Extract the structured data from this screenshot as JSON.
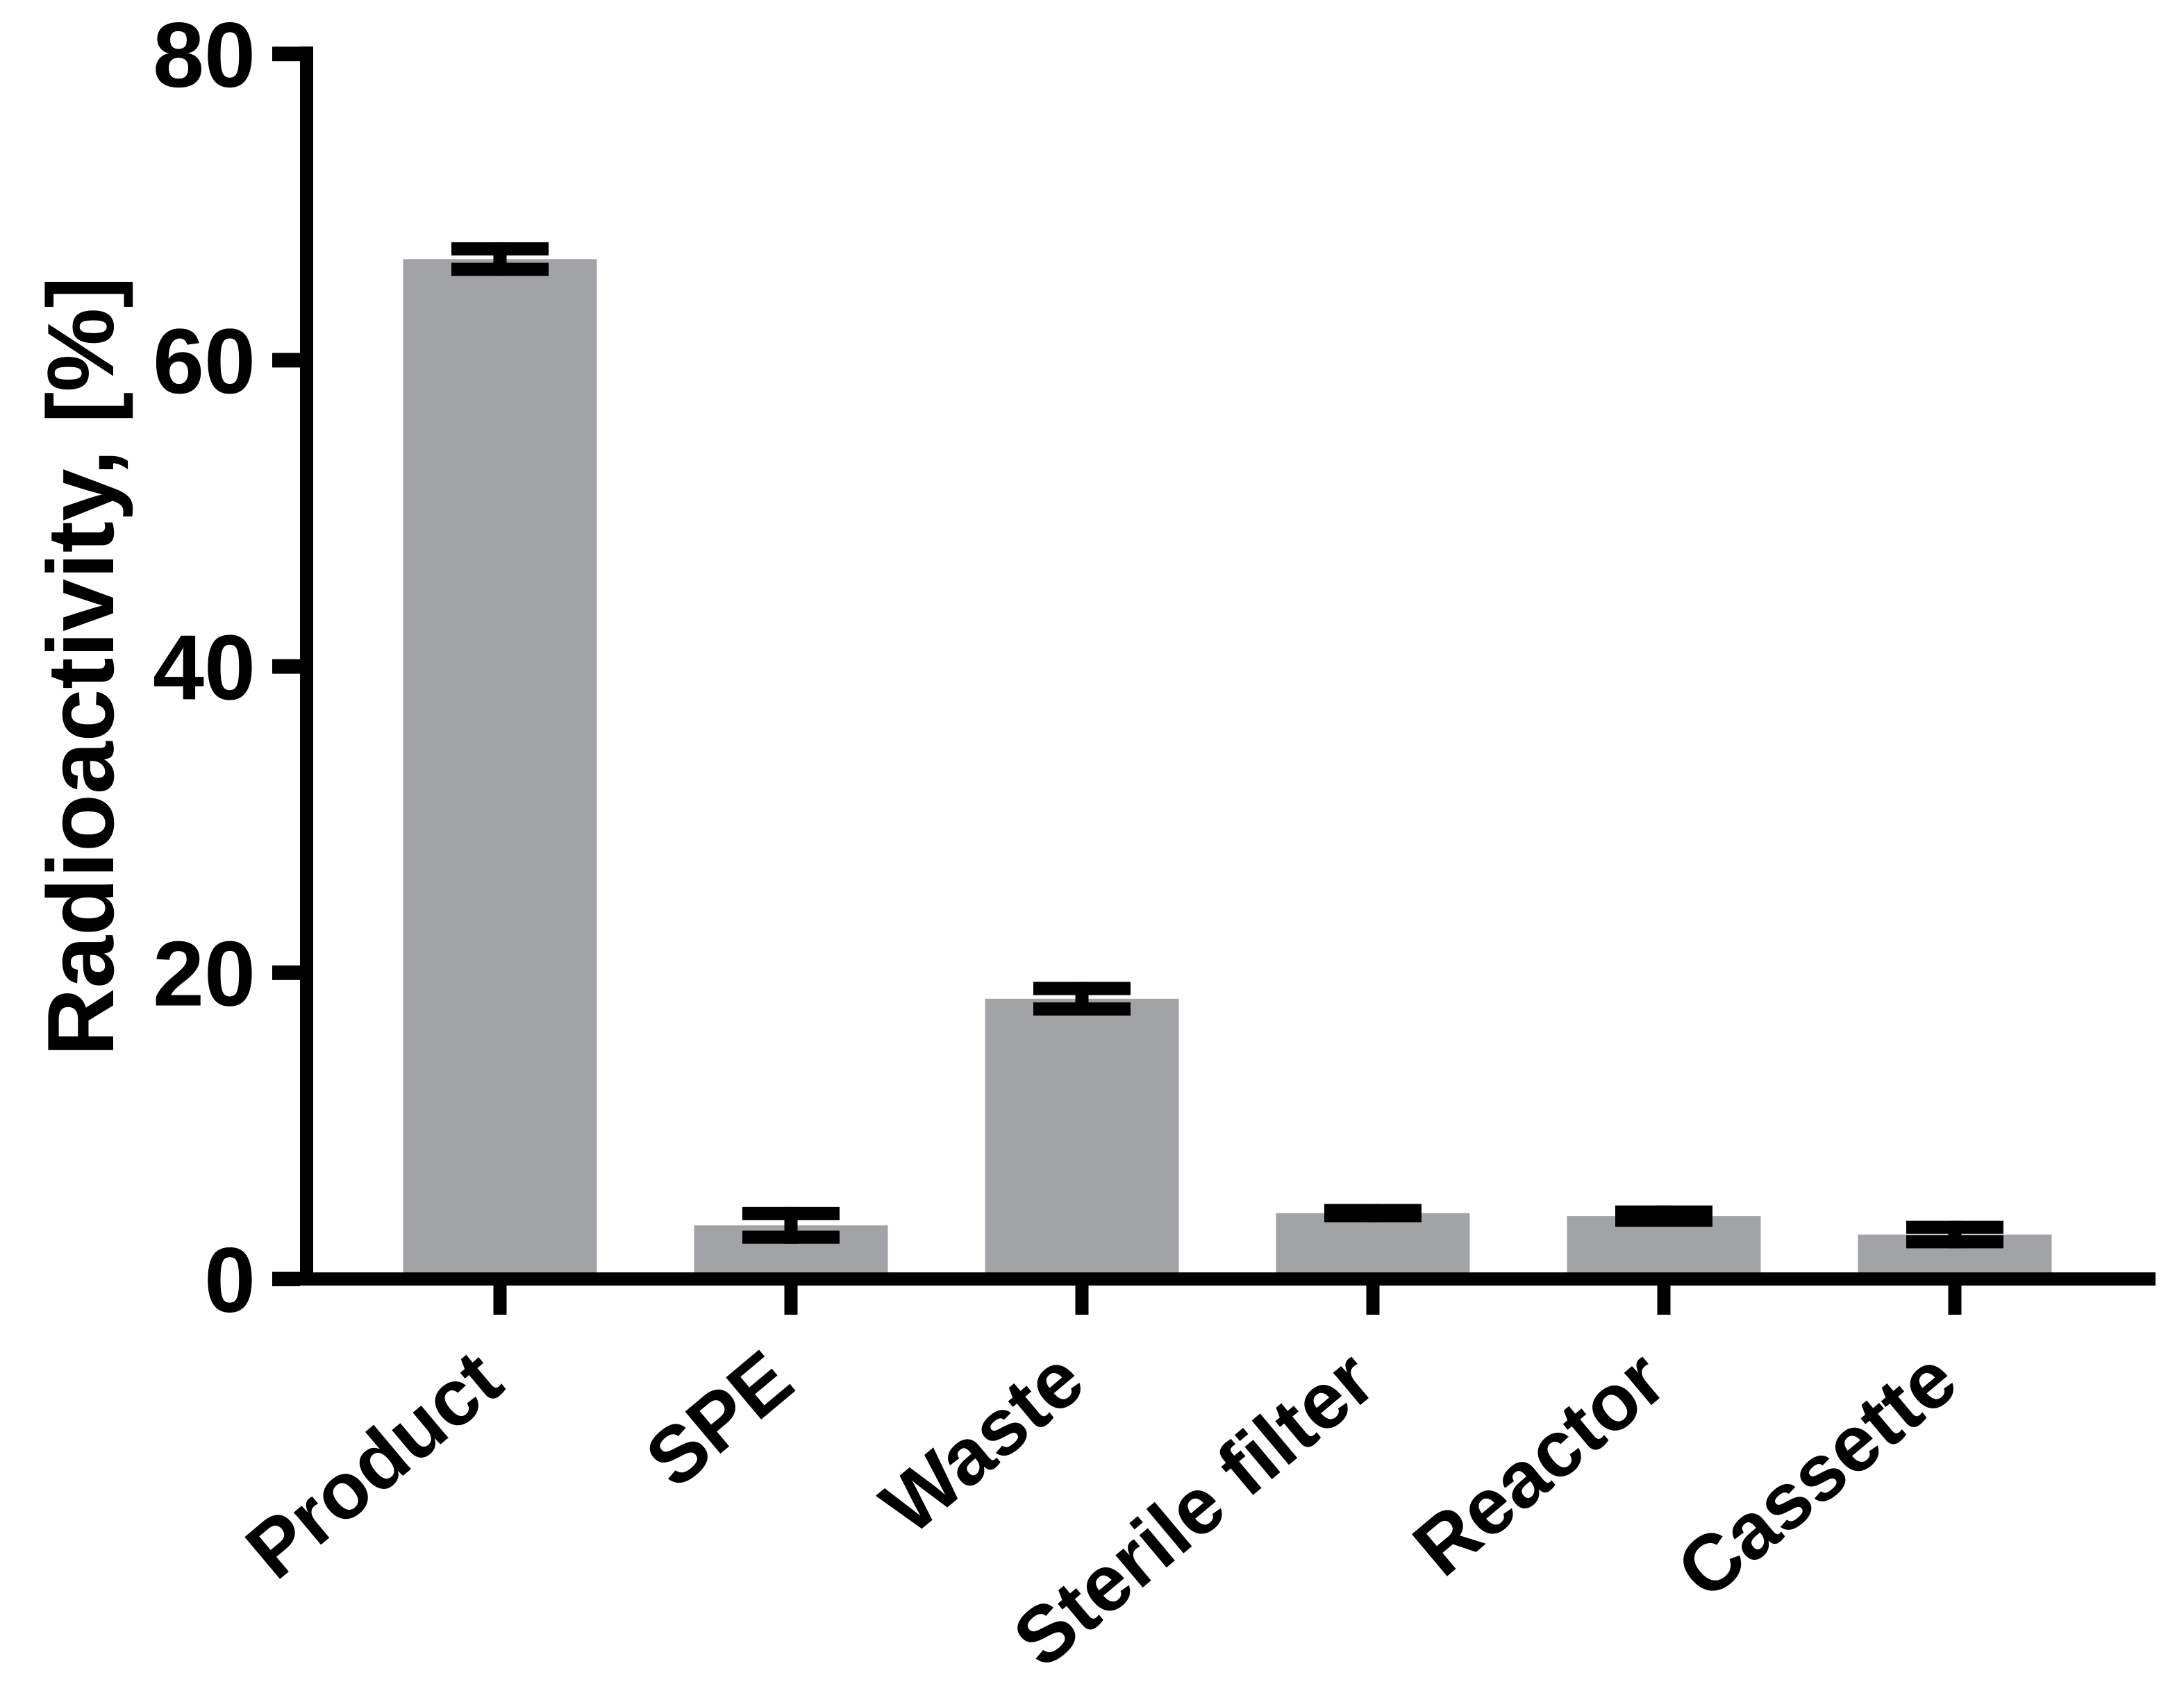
{
  "figure": {
    "kind": "scientific-bar-chart",
    "background_color": "#ffffff"
  },
  "chart_data": {
    "type": "bar",
    "title": "",
    "categories": [
      "Product",
      "SPE",
      "Waste",
      "Sterile filter",
      "Reactor",
      "Cassette"
    ],
    "values": [
      66.6,
      3.5,
      18.3,
      4.3,
      4.1,
      2.9
    ],
    "errors": [
      1.1,
      1.2,
      1.1,
      0.6,
      0.7,
      0.9
    ],
    "error_style": "mean ± SD, capped, both directions",
    "ylabel": "Radioactivity, [%]",
    "xlabel": "",
    "ylim": [
      0,
      80
    ],
    "yticks": [
      0,
      20,
      40,
      60,
      80
    ],
    "ytick_labels": [
      "0",
      "20",
      "40",
      "60",
      "80"
    ],
    "grid": false,
    "legend": false,
    "x_tick_label_rotation_deg": 40,
    "colors": {
      "bar_fill": "#a2a3a7",
      "error_bar": "#000000",
      "axis": "#000000",
      "text": "#000000"
    }
  }
}
